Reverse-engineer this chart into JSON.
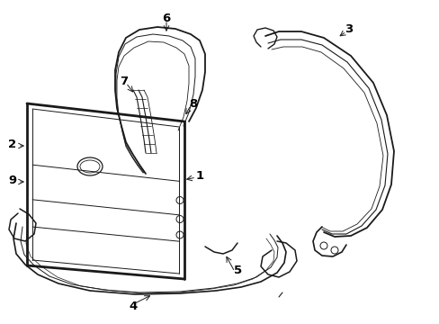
{
  "background_color": "#ffffff",
  "line_color": "#1a1a1a",
  "label_color": "#000000",
  "figsize": [
    4.89,
    3.6
  ],
  "dpi": 100
}
